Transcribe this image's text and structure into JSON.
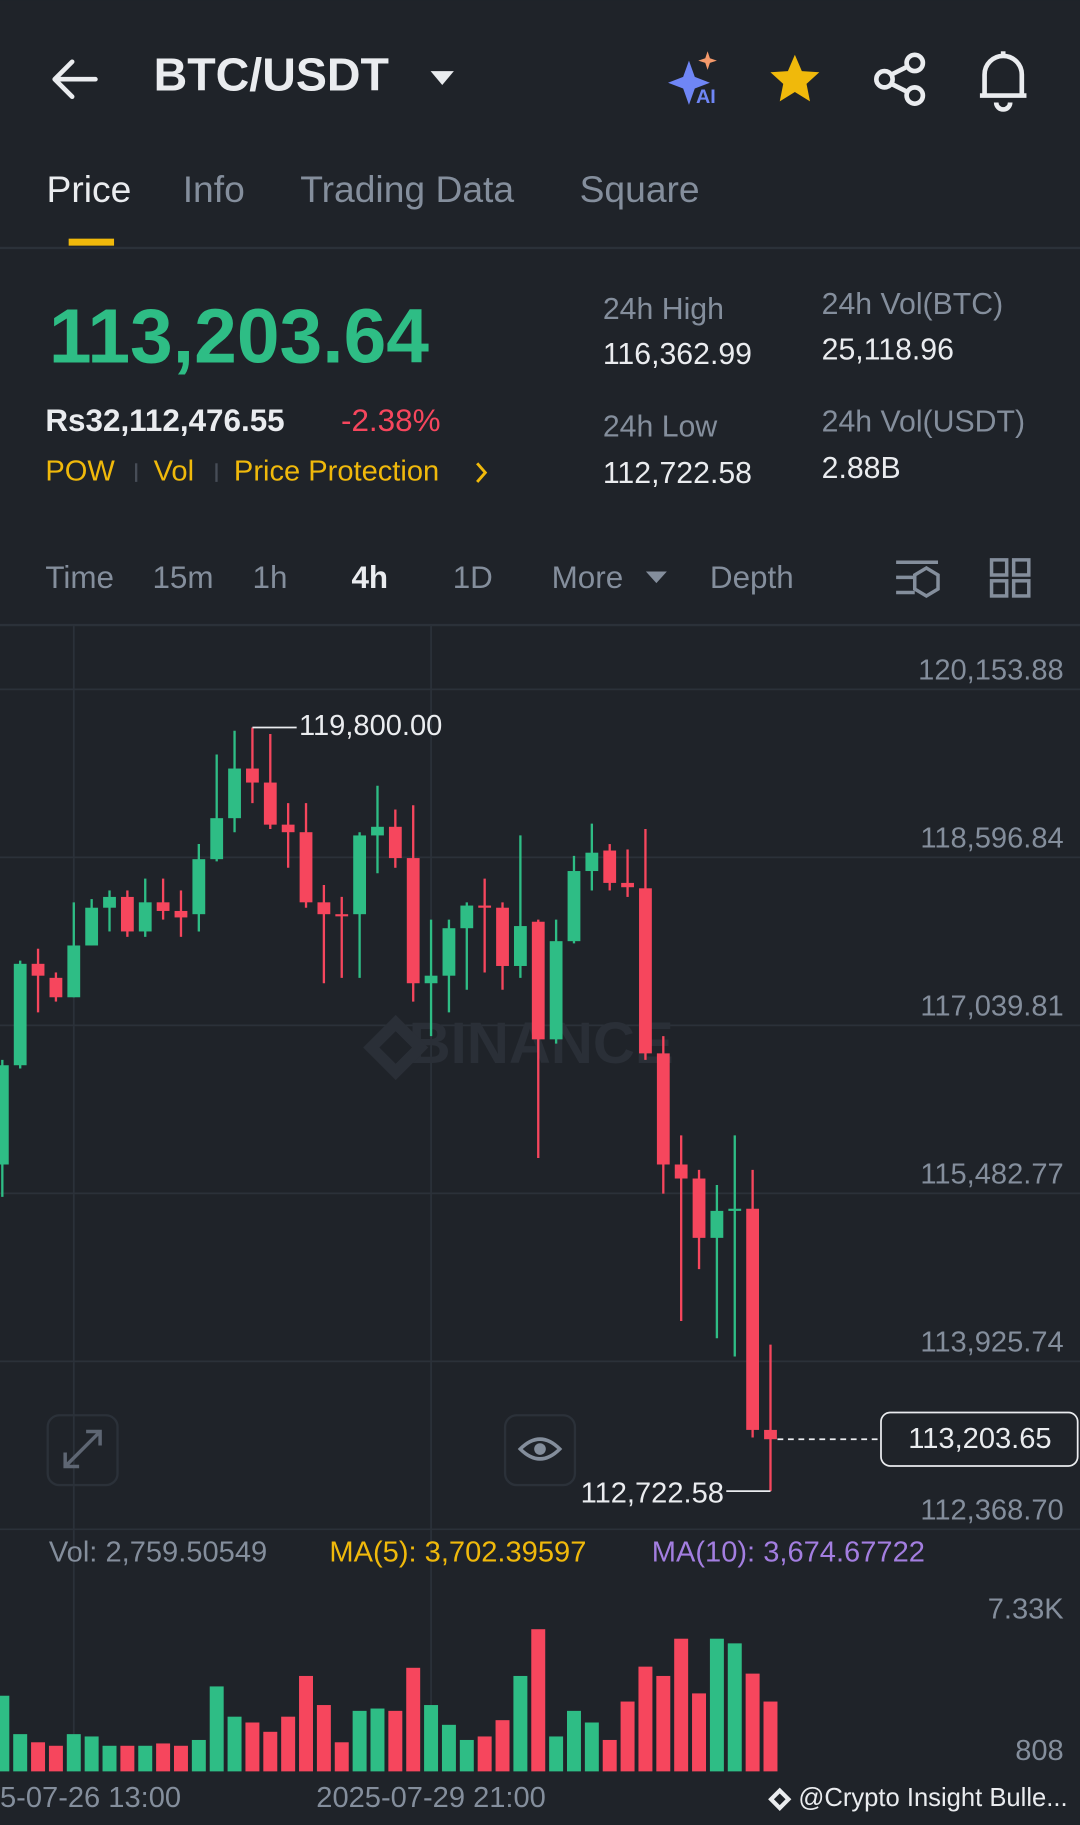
{
  "header": {
    "pair": "BTC/USDT"
  },
  "tabs": [
    "Price",
    "Info",
    "Trading Data",
    "Square"
  ],
  "ticker": {
    "last_price": "113,203.64",
    "fiat_price": "Rs32,112,476.55",
    "change": "-2.38%",
    "tags": [
      "POW",
      "Vol",
      "Price Protection"
    ],
    "stats": [
      {
        "label": "24h High",
        "value": "116,362.99"
      },
      {
        "label": "24h Vol(BTC)",
        "value": "25,118.96"
      },
      {
        "label": "24h Low",
        "value": "112,722.58"
      },
      {
        "label": "24h Vol(USDT)",
        "value": "2.88B"
      }
    ]
  },
  "intervals": [
    "Time",
    "15m",
    "1h",
    "4h",
    "1D",
    "More",
    "Depth"
  ],
  "volume_legend": {
    "vol": "Vol: 2,759.50549",
    "ma5": "MA(5): 3,702.39597",
    "ma10": "MA(10): 3,674.67722"
  },
  "footer": {
    "source": "@Crypto Insight Bulle..."
  },
  "chart_data": [
    {
      "type": "candlestick",
      "watermark": "BINANCE",
      "open": [
        115750,
        116670,
        117610,
        117480,
        117300,
        117780,
        118130,
        118230,
        117910,
        118180,
        118100,
        118070,
        118580,
        118960,
        119420,
        119290,
        118900,
        118830,
        118180,
        118070,
        118070,
        118800,
        118880,
        118590,
        117430,
        117500,
        117940,
        118150,
        118130,
        117590,
        118000,
        116910,
        117820,
        118470,
        118660,
        118360,
        118310,
        116780,
        115750,
        115620,
        115070,
        115320,
        115340,
        113290
      ],
      "high": [
        116720,
        117640,
        117750,
        117530,
        118180,
        118210,
        118290,
        118290,
        118400,
        118400,
        118290,
        118720,
        119550,
        119770,
        119800,
        119740,
        119100,
        119100,
        118340,
        118230,
        118830,
        119260,
        119040,
        119080,
        118020,
        118020,
        118180,
        118400,
        118180,
        118800,
        118020,
        118020,
        118610,
        118910,
        118720,
        118670,
        118860,
        116940,
        116020,
        115700,
        115560,
        116020,
        115700,
        114080
      ],
      "low": [
        115450,
        116640,
        117160,
        117260,
        117300,
        117780,
        117910,
        117860,
        117860,
        118020,
        117860,
        117910,
        118560,
        118830,
        119100,
        118860,
        118500,
        118130,
        117430,
        117480,
        117480,
        118450,
        118500,
        117260,
        116940,
        117160,
        117370,
        117530,
        117370,
        117480,
        115810,
        116870,
        117800,
        118290,
        118290,
        118230,
        116720,
        115480,
        114300,
        114780,
        114140,
        113970,
        113220,
        112722.58
      ],
      "close": [
        116670,
        117610,
        117500,
        117300,
        117780,
        118130,
        118230,
        117910,
        118180,
        118100,
        118040,
        118580,
        118960,
        119420,
        119290,
        118900,
        118830,
        118180,
        118070,
        118050,
        118800,
        118880,
        118590,
        117430,
        117500,
        117940,
        118150,
        118130,
        117590,
        117960,
        116910,
        117820,
        118470,
        118640,
        118360,
        118320,
        116780,
        115750,
        115620,
        115070,
        115320,
        115340,
        113290,
        113203.65
      ],
      "up_color": "#2ebd85",
      "down_color": "#f6465d",
      "ylim": [
        112368.7,
        120750
      ],
      "yticks": [
        {
          "value": 120153.88,
          "label": "120,153.88"
        },
        {
          "value": 118596.84,
          "label": "118,596.84"
        },
        {
          "value": 117039.81,
          "label": "117,039.81"
        },
        {
          "value": 115482.77,
          "label": "115,482.77"
        },
        {
          "value": 113925.74,
          "label": "113,925.74"
        },
        {
          "value": 112368.7,
          "label": "112,368.70"
        }
      ],
      "annotations": [
        {
          "value": 119800,
          "label": "119,800.00"
        },
        {
          "value": 112722.58,
          "label": "112,722.58"
        }
      ],
      "last_price": {
        "value": 113203.65,
        "label": "113,203.65"
      },
      "x_tick_labels": [
        "5-07-26 13:00",
        "2025-07-29 21:00"
      ],
      "grid": true
    },
    {
      "type": "bar",
      "values": [
        3900,
        1920,
        1500,
        1320,
        1920,
        1800,
        1320,
        1320,
        1320,
        1440,
        1320,
        1620,
        4380,
        2820,
        2520,
        2040,
        2820,
        4920,
        3420,
        1500,
        3120,
        3240,
        3120,
        5340,
        3420,
        2400,
        1620,
        1800,
        2640,
        4920,
        7330,
        1800,
        3120,
        2520,
        1620,
        3600,
        5400,
        4920,
        6840,
        4020,
        6840,
        6600,
        5040,
        3600
      ],
      "ylim": [
        0,
        10020
      ],
      "yticks": [
        {
          "value": 7330,
          "label": "7.33K"
        },
        808
      ]
    }
  ]
}
